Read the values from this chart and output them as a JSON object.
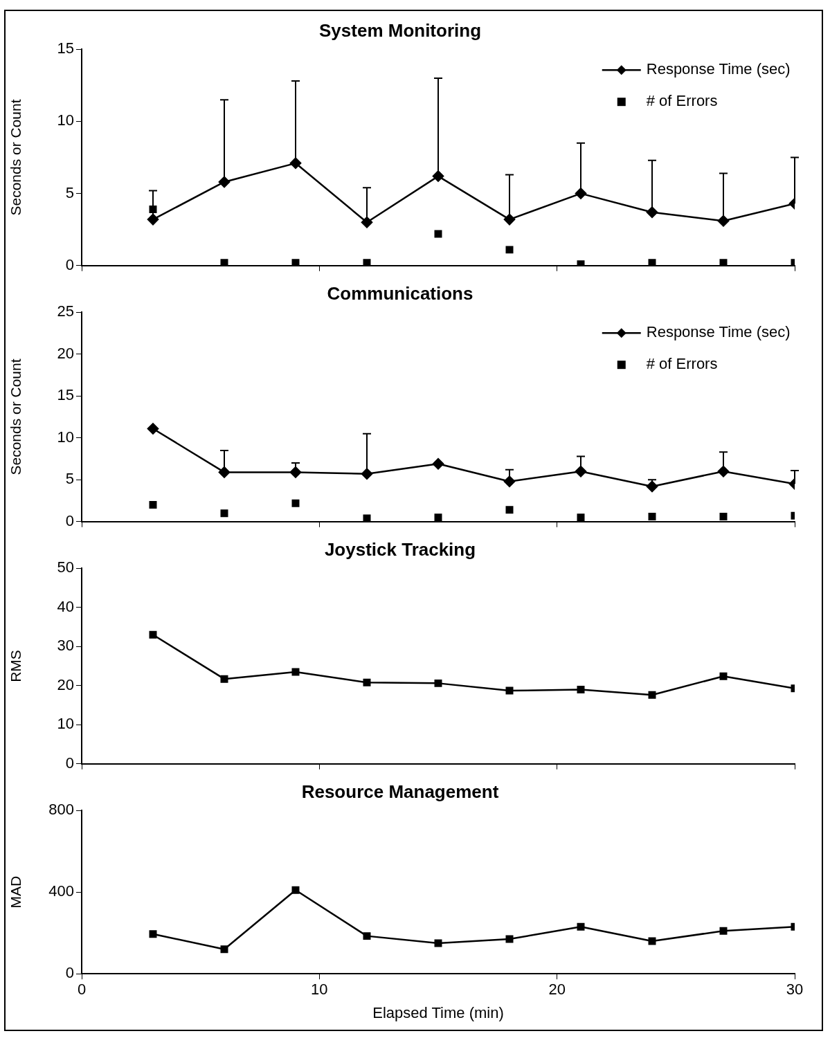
{
  "chart_data": [
    {
      "type": "line",
      "title": "System Monitoring",
      "ylabel": "Seconds or Count",
      "x": [
        3,
        6,
        9,
        12,
        15,
        18,
        21,
        24,
        27,
        30
      ],
      "xlim": [
        0,
        30
      ],
      "xticks": [
        0,
        10,
        20,
        30
      ],
      "ylim": [
        0,
        15
      ],
      "yticks": [
        0,
        5,
        10,
        15
      ],
      "tick_labels": "y",
      "legend": "top right",
      "series": [
        {
          "name": "Response Time (sec)",
          "type": "line",
          "marker": "diamond",
          "color": "#000000",
          "values": [
            3.2,
            5.8,
            7.1,
            3.0,
            6.2,
            3.2,
            5.0,
            3.7,
            3.1,
            4.3
          ],
          "errors": [
            [
              3.2,
              5.2
            ],
            [
              5.8,
              11.5
            ],
            [
              7.1,
              12.8
            ],
            [
              3.0,
              5.4
            ],
            [
              6.2,
              13.0
            ],
            [
              3.2,
              6.3
            ],
            [
              5.0,
              8.5
            ],
            [
              3.7,
              7.3
            ],
            [
              3.1,
              6.4
            ],
            [
              4.3,
              7.5
            ]
          ]
        },
        {
          "name": "# of Errors",
          "type": "scatter",
          "marker": "square",
          "color": "#000000",
          "values": [
            3.9,
            0.2,
            0.2,
            0.2,
            2.2,
            1.1,
            0.1,
            0.2,
            0.2,
            0.2
          ]
        }
      ]
    },
    {
      "type": "line",
      "title": "Communications",
      "ylabel": "Seconds or Count",
      "x": [
        3,
        6,
        9,
        12,
        15,
        18,
        21,
        24,
        27,
        30
      ],
      "xlim": [
        0,
        30
      ],
      "xticks": [
        0,
        10,
        20,
        30
      ],
      "ylim": [
        0,
        25
      ],
      "yticks": [
        0,
        5,
        10,
        15,
        20,
        25
      ],
      "tick_labels": "y",
      "legend": "top right",
      "series": [
        {
          "name": "Response Time (sec)",
          "type": "line",
          "marker": "diamond",
          "color": "#000000",
          "values": [
            11.1,
            5.9,
            5.9,
            5.7,
            6.9,
            4.8,
            6.0,
            4.2,
            6.0,
            4.5
          ],
          "errors": [
            null,
            [
              5.9,
              8.5
            ],
            [
              5.9,
              7.0
            ],
            [
              5.7,
              10.5
            ],
            null,
            [
              4.8,
              6.2
            ],
            [
              6.0,
              7.8
            ],
            [
              4.2,
              5.0
            ],
            [
              6.0,
              8.3
            ],
            [
              4.5,
              6.1
            ]
          ]
        },
        {
          "name": "# of Errors",
          "type": "scatter",
          "marker": "square",
          "color": "#000000",
          "values": [
            2.0,
            1.0,
            2.2,
            0.4,
            0.5,
            1.4,
            0.5,
            0.6,
            0.6,
            0.7
          ]
        }
      ]
    },
    {
      "type": "line",
      "title": "Joystick Tracking",
      "ylabel": "RMS",
      "x": [
        3,
        6,
        9,
        12,
        15,
        18,
        21,
        24,
        27,
        30
      ],
      "xlim": [
        0,
        30
      ],
      "xticks": [
        0,
        10,
        20,
        30
      ],
      "ylim": [
        0,
        50
      ],
      "yticks": [
        0,
        10,
        20,
        30,
        40,
        50
      ],
      "tick_labels": "y",
      "marker": "square",
      "series": [
        {
          "color": "#000000",
          "values": [
            33.0,
            21.7,
            23.5,
            20.8,
            20.6,
            18.7,
            19.0,
            17.6,
            22.4,
            19.3
          ]
        }
      ]
    },
    {
      "type": "line",
      "title": "Resource Management",
      "ylabel": "MAD",
      "xlabel": "Elapsed Time (min)",
      "x": [
        3,
        6,
        9,
        12,
        15,
        18,
        21,
        24,
        27,
        30
      ],
      "xlim": [
        0,
        30
      ],
      "xticks": [
        0,
        10,
        20,
        30
      ],
      "ylim": [
        0,
        800
      ],
      "yticks": [
        0,
        400,
        800
      ],
      "marker": "square",
      "series": [
        {
          "color": "#000000",
          "values": [
            195,
            120,
            410,
            185,
            150,
            170,
            230,
            160,
            210,
            230
          ]
        }
      ]
    }
  ]
}
